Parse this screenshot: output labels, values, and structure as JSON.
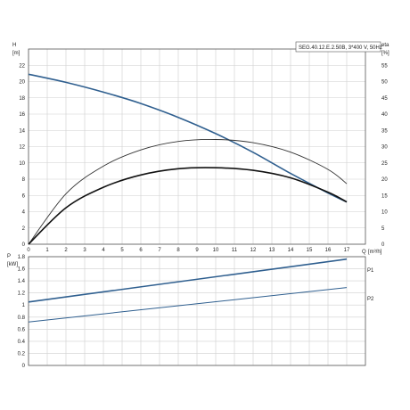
{
  "chart_data": [
    {
      "type": "line",
      "title": "SEG.40.12.E.2.50B, 3*400 V, 50Hz",
      "ylabel": "H",
      "yunit": "[m]",
      "y2label": "eta",
      "y2unit": "[%]",
      "xlabel": "Q",
      "xunit": "[m³/h]",
      "xlim": [
        0,
        18
      ],
      "ylim": [
        0,
        24
      ],
      "y2lim": [
        0,
        60
      ],
      "grid": true,
      "x_ticks": [
        0,
        1,
        2,
        3,
        4,
        5,
        6,
        7,
        8,
        9,
        10,
        11,
        12,
        13,
        14,
        15,
        16,
        17
      ],
      "y_ticks": [
        0,
        2,
        4,
        6,
        8,
        10,
        12,
        14,
        16,
        18,
        20,
        22
      ],
      "y2_ticks": [
        0,
        5,
        10,
        15,
        20,
        25,
        30,
        35,
        40,
        45,
        50,
        55
      ],
      "series": [
        {
          "axis": "left",
          "color": "#2f5f8f",
          "x": [
            0,
            2,
            4,
            6,
            8,
            10,
            12,
            14,
            16,
            17
          ],
          "y": [
            20.9,
            19.9,
            18.7,
            17.3,
            15.6,
            13.6,
            11.3,
            8.7,
            6.3,
            5.2
          ]
        },
        {
          "axis": "right",
          "color": "#333333",
          "x": [
            0,
            2,
            4,
            6,
            8,
            10,
            12,
            14,
            16,
            17
          ],
          "y": [
            0,
            15.5,
            24.0,
            29.0,
            31.6,
            32.2,
            31.2,
            28.3,
            23.0,
            18.6
          ]
        },
        {
          "axis": "right",
          "color": "#111111",
          "x": [
            0,
            2,
            4,
            6,
            8,
            10,
            12,
            14,
            16,
            17
          ],
          "y": [
            0,
            11.2,
            17.5,
            21.3,
            23.2,
            23.5,
            22.7,
            20.4,
            16.0,
            13.0
          ]
        }
      ]
    },
    {
      "type": "line",
      "ylabel": "P",
      "yunit": "[kW]",
      "xlim": [
        0,
        18
      ],
      "ylim": [
        0,
        1.8
      ],
      "grid": true,
      "y_ticks": [
        "0",
        "0.2",
        "0.4",
        "0.6",
        "0.8",
        "1",
        "1.2",
        "1.4",
        "1.6",
        "1.8"
      ],
      "series": [
        {
          "name": "P1",
          "color": "#2f5f8f",
          "x": [
            0,
            17
          ],
          "y": [
            1.05,
            1.76
          ]
        },
        {
          "name": "P2",
          "color": "#2f5f8f",
          "x": [
            0,
            17
          ],
          "y": [
            0.72,
            1.29
          ]
        }
      ]
    }
  ]
}
